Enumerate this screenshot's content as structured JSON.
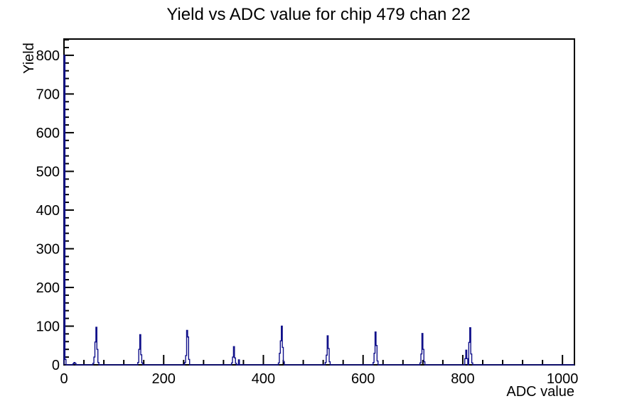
{
  "page": {
    "background_color": "#ffffff",
    "axis_color": "#000000"
  },
  "chart_data": {
    "type": "bar",
    "style": "root-histogram-outline",
    "title": "Yield vs ADC value for chip 479 chan 22",
    "xlabel": "ADC value",
    "ylabel": "Yield",
    "xlim": [
      0,
      1024
    ],
    "ylim": [
      0,
      842
    ],
    "x_major_ticks": [
      0,
      200,
      400,
      600,
      800,
      1000
    ],
    "x_minor_tick_step": 40,
    "y_major_ticks": [
      0,
      100,
      200,
      300,
      400,
      500,
      600,
      700,
      800
    ],
    "y_minor_tick_step": 20,
    "grid": false,
    "legend": false,
    "line_color": "#10108a",
    "bin_width": 2,
    "peaks_summary": [
      {
        "adc": 0,
        "yield": 800
      },
      {
        "adc": 20,
        "yield": 6
      },
      {
        "adc": 64,
        "yield": 97
      },
      {
        "adc": 152,
        "yield": 78
      },
      {
        "adc": 246,
        "yield": 89
      },
      {
        "adc": 340,
        "yield": 47
      },
      {
        "adc": 436,
        "yield": 100
      },
      {
        "adc": 528,
        "yield": 75
      },
      {
        "adc": 624,
        "yield": 85
      },
      {
        "adc": 718,
        "yield": 81
      },
      {
        "adc": 814,
        "yield": 96
      }
    ],
    "bins": [
      [
        0,
        800
      ],
      [
        2,
        14
      ],
      [
        18,
        3
      ],
      [
        20,
        6
      ],
      [
        22,
        4
      ],
      [
        58,
        4
      ],
      [
        60,
        20
      ],
      [
        62,
        59
      ],
      [
        64,
        97
      ],
      [
        66,
        40
      ],
      [
        68,
        6
      ],
      [
        148,
        6
      ],
      [
        150,
        40
      ],
      [
        152,
        78
      ],
      [
        154,
        26
      ],
      [
        156,
        5
      ],
      [
        242,
        6
      ],
      [
        244,
        24
      ],
      [
        246,
        89
      ],
      [
        248,
        72
      ],
      [
        250,
        14
      ],
      [
        336,
        5
      ],
      [
        338,
        20
      ],
      [
        340,
        47
      ],
      [
        342,
        18
      ],
      [
        344,
        4
      ],
      [
        350,
        13
      ],
      [
        430,
        5
      ],
      [
        432,
        30
      ],
      [
        434,
        62
      ],
      [
        436,
        100
      ],
      [
        438,
        45
      ],
      [
        440,
        8
      ],
      [
        524,
        6
      ],
      [
        526,
        25
      ],
      [
        528,
        75
      ],
      [
        530,
        42
      ],
      [
        532,
        8
      ],
      [
        620,
        6
      ],
      [
        622,
        30
      ],
      [
        624,
        85
      ],
      [
        626,
        50
      ],
      [
        628,
        10
      ],
      [
        714,
        5
      ],
      [
        716,
        28
      ],
      [
        718,
        81
      ],
      [
        720,
        40
      ],
      [
        722,
        8
      ],
      [
        804,
        16
      ],
      [
        806,
        38
      ],
      [
        808,
        16
      ],
      [
        812,
        58
      ],
      [
        814,
        96
      ],
      [
        816,
        28
      ],
      [
        818,
        5
      ]
    ]
  }
}
